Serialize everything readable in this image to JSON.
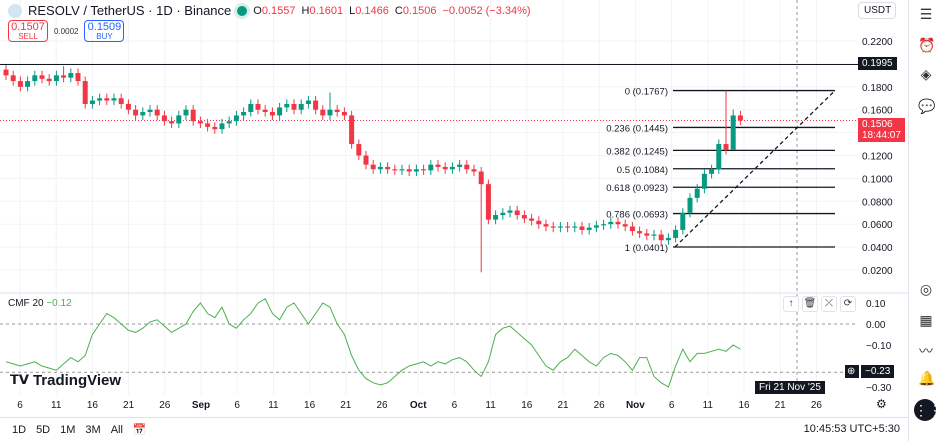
{
  "header": {
    "symbol": "RESOLV / TetherUS · 1D · Binance",
    "o_label": "O",
    "o": "0.1557",
    "h_label": "H",
    "h": "0.1601",
    "l_label": "L",
    "l": "0.1466",
    "c_label": "C",
    "c": "0.1506",
    "change": "−0.0052 (−3.34%)"
  },
  "trade": {
    "sell_price": "0.1507",
    "sell_label": "SELL",
    "spread": "0.0002",
    "buy_price": "0.1509",
    "buy_label": "BUY"
  },
  "currency": "USDT",
  "price_tags": {
    "line": "0.1995",
    "current": "0.1506",
    "countdown": "18:44:07"
  },
  "cmf": {
    "label": "CMF 20",
    "value": "−0.12",
    "tag": "−0.23"
  },
  "crosshair_date": "Fri 21 Nov '25",
  "brand": "TradingView",
  "bottom": {
    "ranges": [
      "1D",
      "5D",
      "1M",
      "3M",
      "All"
    ],
    "time": "10:45:53 UTC+5:30"
  },
  "colors": {
    "up": "#089981",
    "down": "#f23645",
    "cmf": "#4caf50"
  },
  "chart_data": {
    "type": "candlestick",
    "price_axis": {
      "min": 0.02,
      "max": 0.22,
      "ticks": [
        "0.2200",
        "0.1800",
        "0.1600",
        "0.1200",
        "0.1000",
        "0.0800",
        "0.0600",
        "0.0400",
        "0.0200"
      ]
    },
    "time_ticks": [
      "6",
      "11",
      "16",
      "21",
      "26",
      "Sep",
      "6",
      "11",
      "16",
      "21",
      "26",
      "Oct",
      "6",
      "11",
      "16",
      "21",
      "26",
      "Nov",
      "6",
      "11",
      "16",
      "21",
      "26"
    ],
    "start_open": 0.195,
    "closes": [
      0.19,
      0.185,
      0.18,
      0.185,
      0.19,
      0.187,
      0.185,
      0.19,
      0.188,
      0.192,
      0.185,
      0.165,
      0.168,
      0.17,
      0.168,
      0.17,
      0.165,
      0.16,
      0.155,
      0.158,
      0.16,
      0.155,
      0.15,
      0.148,
      0.155,
      0.16,
      0.15,
      0.148,
      0.145,
      0.143,
      0.148,
      0.15,
      0.155,
      0.158,
      0.165,
      0.16,
      0.158,
      0.155,
      0.162,
      0.165,
      0.16,
      0.165,
      0.168,
      0.16,
      0.155,
      0.16,
      0.158,
      0.155,
      0.13,
      0.12,
      0.112,
      0.108,
      0.11,
      0.108,
      0.107,
      0.108,
      0.106,
      0.108,
      0.107,
      0.112,
      0.11,
      0.108,
      0.11,
      0.112,
      0.108,
      0.106,
      0.095,
      0.064,
      0.068,
      0.07,
      0.072,
      0.068,
      0.065,
      0.063,
      0.06,
      0.058,
      0.057,
      0.058,
      0.057,
      0.058,
      0.055,
      0.057,
      0.059,
      0.06,
      0.062,
      0.06,
      0.058,
      0.054,
      0.052,
      0.05,
      0.051,
      0.046,
      0.048,
      0.055,
      0.07,
      0.083,
      0.091,
      0.104,
      0.108,
      0.13,
      0.125,
      0.155,
      0.1506
    ],
    "wick_overrides": {
      "66": {
        "l": 0.018
      },
      "100": {
        "h": 0.1767
      },
      "101": {
        "h": 0.1601,
        "l": 0.1466
      },
      "8": {
        "h": 0.198
      },
      "45": {
        "h": 0.175
      }
    },
    "fib": {
      "levels": [
        {
          "label": "0 (0.1767)",
          "value": 0.1767
        },
        {
          "label": "0.236 (0.1445)",
          "value": 0.1445
        },
        {
          "label": "0.382 (0.1245)",
          "value": 0.1245
        },
        {
          "label": "0.5 (0.1084)",
          "value": 0.1084
        },
        {
          "label": "0.618 (0.0923)",
          "value": 0.0923
        },
        {
          "label": "0.786 (0.0693)",
          "value": 0.0693
        },
        {
          "label": "1 (0.0401)",
          "value": 0.0401
        }
      ]
    },
    "hline": 0.1995,
    "cmf_axis": {
      "ticks": [
        "0.10",
        "0.00",
        "−0.10",
        "−0.30"
      ]
    },
    "cmf_values": [
      -0.18,
      -0.19,
      -0.2,
      -0.19,
      -0.18,
      -0.2,
      -0.21,
      -0.22,
      -0.19,
      -0.16,
      -0.18,
      -0.15,
      -0.05,
      0.0,
      0.05,
      0.03,
      0.0,
      -0.03,
      -0.04,
      -0.02,
      0.01,
      0.02,
      -0.01,
      -0.04,
      -0.02,
      0.0,
      0.06,
      0.1,
      0.05,
      0.03,
      0.08,
      0.0,
      -0.02,
      0.02,
      0.05,
      0.1,
      0.12,
      0.05,
      0.02,
      0.08,
      0.1,
      0.05,
      0.0,
      0.05,
      0.1,
      0.08,
      0.0,
      -0.05,
      -0.15,
      -0.22,
      -0.26,
      -0.28,
      -0.29,
      -0.28,
      -0.25,
      -0.22,
      -0.2,
      -0.19,
      -0.18,
      -0.2,
      -0.18,
      -0.19,
      -0.17,
      -0.16,
      -0.18,
      -0.22,
      -0.25,
      -0.18,
      -0.05,
      -0.02,
      -0.01,
      -0.04,
      -0.07,
      -0.1,
      -0.15,
      -0.2,
      -0.22,
      -0.18,
      -0.16,
      -0.12,
      -0.15,
      -0.18,
      -0.2,
      -0.16,
      -0.14,
      -0.15,
      -0.18,
      -0.22,
      -0.16,
      -0.16,
      -0.25,
      -0.28,
      -0.3,
      -0.2,
      -0.12,
      -0.18,
      -0.14,
      -0.14,
      -0.13,
      -0.12,
      -0.13,
      -0.1,
      -0.12
    ]
  }
}
